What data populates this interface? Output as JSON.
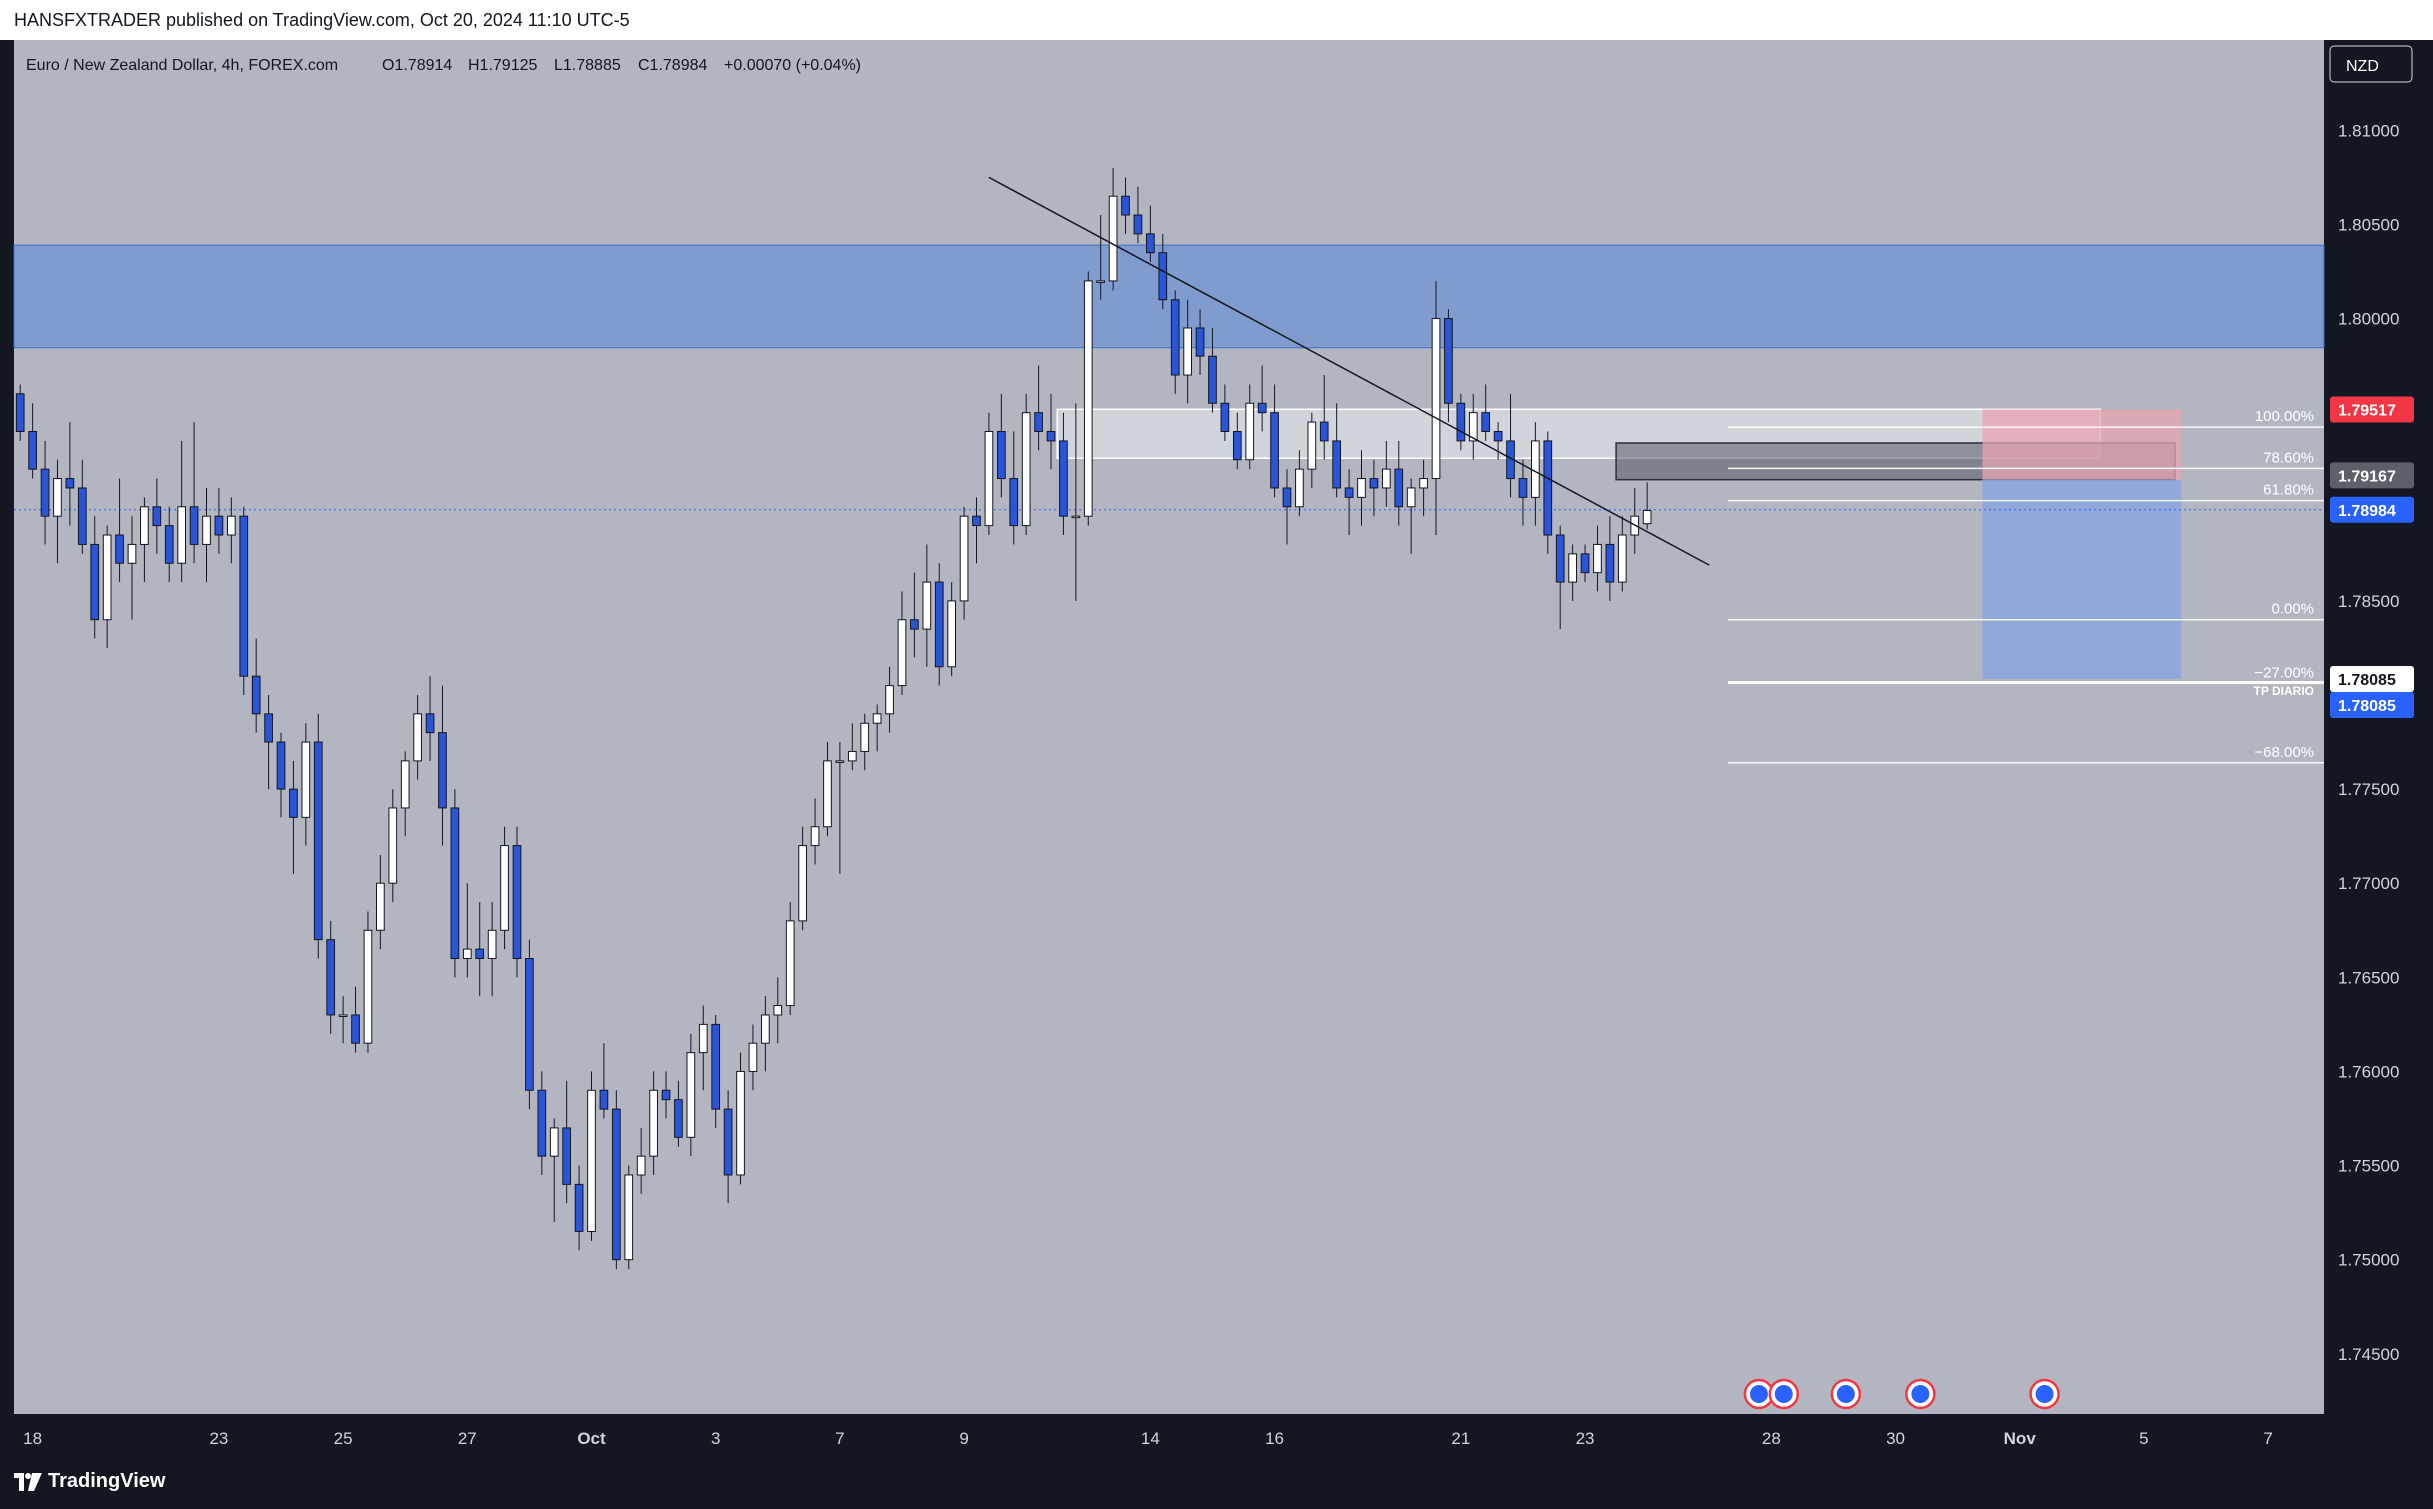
{
  "header": {
    "publisher_line": "HANSFXTRADER published on TradingView.com, Oct 20, 2024 11:10 UTC-5"
  },
  "footer": {
    "brand": "TradingView",
    "logo_icon": "tradingview-logo-icon"
  },
  "colors": {
    "background": "#b3b6c0",
    "frame": "#131722",
    "up_candle": "#ffffff",
    "down_candle": "#2a55d9",
    "zone_blue": "#6f93d3",
    "last_price": "#2962ff",
    "top_price": "#f23645",
    "fib_price": "#5d606b"
  },
  "chart_data": {
    "type": "candlestick",
    "symbol_line": "Euro / New Zealand Dollar, 4h, FOREX.com",
    "ohlc_header": {
      "open": "O1.78914",
      "high": "H1.79125",
      "low": "L1.78885",
      "close": "C1.78984",
      "change": "+0.00070 (+0.04%)"
    },
    "currency": "NZD",
    "y_ticks": [
      "1.81000",
      "1.80500",
      "1.80000",
      "1.79500",
      "1.79000",
      "1.78500",
      "1.78000",
      "1.77500",
      "1.77000",
      "1.76500",
      "1.76000",
      "1.75500",
      "1.75000",
      "1.74500"
    ],
    "y_tick_values": [
      1.81,
      1.805,
      1.8,
      1.795,
      1.79,
      1.785,
      1.78,
      1.775,
      1.77,
      1.765,
      1.76,
      1.755,
      1.75,
      1.745
    ],
    "ylim": [
      1.7418,
      1.8148
    ],
    "x_ticks": [
      "18",
      "23",
      "25",
      "27",
      "Oct",
      "3",
      "7",
      "9",
      "14",
      "16",
      "21",
      "23",
      "28",
      "30",
      "Nov",
      "5",
      "7"
    ],
    "x_tick_bar_index": [
      1,
      16,
      26,
      36,
      46,
      56,
      66,
      76,
      91,
      101,
      116,
      126,
      141,
      151,
      161,
      171,
      181
    ],
    "total_bars": 186,
    "candles": [
      [
        1.796,
        1.7965,
        1.7935,
        1.794
      ],
      [
        1.794,
        1.7955,
        1.7915,
        1.792
      ],
      [
        1.792,
        1.7935,
        1.788,
        1.7895
      ],
      [
        1.7895,
        1.7925,
        1.787,
        1.7915
      ],
      [
        1.7915,
        1.7945,
        1.789,
        1.791
      ],
      [
        1.791,
        1.7925,
        1.7875,
        1.788
      ],
      [
        1.788,
        1.7895,
        1.783,
        1.784
      ],
      [
        1.784,
        1.789,
        1.7825,
        1.7885
      ],
      [
        1.7885,
        1.7915,
        1.786,
        1.787
      ],
      [
        1.787,
        1.7895,
        1.784,
        1.788
      ],
      [
        1.788,
        1.7905,
        1.786,
        1.79
      ],
      [
        1.79,
        1.7915,
        1.7875,
        1.789
      ],
      [
        1.789,
        1.79,
        1.786,
        1.787
      ],
      [
        1.787,
        1.7935,
        1.786,
        1.79
      ],
      [
        1.79,
        1.7945,
        1.787,
        1.788
      ],
      [
        1.788,
        1.791,
        1.786,
        1.7895
      ],
      [
        1.7895,
        1.791,
        1.7875,
        1.7885
      ],
      [
        1.7885,
        1.7905,
        1.787,
        1.7895
      ],
      [
        1.7895,
        1.79,
        1.78,
        1.781
      ],
      [
        1.781,
        1.783,
        1.778,
        1.779
      ],
      [
        1.779,
        1.78,
        1.775,
        1.7775
      ],
      [
        1.7775,
        1.778,
        1.7735,
        1.775
      ],
      [
        1.775,
        1.7765,
        1.7705,
        1.7735
      ],
      [
        1.7735,
        1.7785,
        1.772,
        1.7775
      ],
      [
        1.7775,
        1.779,
        1.766,
        1.767
      ],
      [
        1.767,
        1.768,
        1.762,
        1.763
      ],
      [
        1.763,
        1.764,
        1.7615,
        1.763
      ],
      [
        1.763,
        1.7645,
        1.761,
        1.7615
      ],
      [
        1.7615,
        1.7685,
        1.761,
        1.7675
      ],
      [
        1.7675,
        1.7715,
        1.7665,
        1.77
      ],
      [
        1.77,
        1.775,
        1.769,
        1.774
      ],
      [
        1.774,
        1.777,
        1.7725,
        1.7765
      ],
      [
        1.7765,
        1.78,
        1.7755,
        1.779
      ],
      [
        1.779,
        1.781,
        1.7765,
        1.778
      ],
      [
        1.778,
        1.7805,
        1.772,
        1.774
      ],
      [
        1.774,
        1.775,
        1.765,
        1.766
      ],
      [
        1.766,
        1.77,
        1.765,
        1.7665
      ],
      [
        1.7665,
        1.769,
        1.764,
        1.766
      ],
      [
        1.766,
        1.769,
        1.764,
        1.7675
      ],
      [
        1.7675,
        1.773,
        1.7665,
        1.772
      ],
      [
        1.772,
        1.773,
        1.765,
        1.766
      ],
      [
        1.766,
        1.767,
        1.758,
        1.759
      ],
      [
        1.759,
        1.76,
        1.7545,
        1.7555
      ],
      [
        1.7555,
        1.7575,
        1.752,
        1.757
      ],
      [
        1.757,
        1.7595,
        1.753,
        1.754
      ],
      [
        1.754,
        1.755,
        1.7505,
        1.7515
      ],
      [
        1.7515,
        1.76,
        1.751,
        1.759
      ],
      [
        1.759,
        1.7615,
        1.7575,
        1.758
      ],
      [
        1.758,
        1.759,
        1.7495,
        1.75
      ],
      [
        1.75,
        1.755,
        1.7495,
        1.7545
      ],
      [
        1.7545,
        1.757,
        1.7535,
        1.7555
      ],
      [
        1.7555,
        1.76,
        1.7545,
        1.759
      ],
      [
        1.759,
        1.76,
        1.7575,
        1.7585
      ],
      [
        1.7585,
        1.7595,
        1.756,
        1.7565
      ],
      [
        1.7565,
        1.762,
        1.7555,
        1.761
      ],
      [
        1.761,
        1.7635,
        1.759,
        1.7625
      ],
      [
        1.7625,
        1.763,
        1.757,
        1.758
      ],
      [
        1.758,
        1.759,
        1.753,
        1.7545
      ],
      [
        1.7545,
        1.761,
        1.754,
        1.76
      ],
      [
        1.76,
        1.7625,
        1.759,
        1.7615
      ],
      [
        1.7615,
        1.764,
        1.76,
        1.763
      ],
      [
        1.763,
        1.765,
        1.7615,
        1.7635
      ],
      [
        1.7635,
        1.769,
        1.763,
        1.768
      ],
      [
        1.768,
        1.773,
        1.7675,
        1.772
      ],
      [
        1.772,
        1.7745,
        1.771,
        1.773
      ],
      [
        1.773,
        1.7775,
        1.7725,
        1.7765
      ],
      [
        1.7765,
        1.7775,
        1.7705,
        1.7765
      ],
      [
        1.7765,
        1.7785,
        1.776,
        1.777
      ],
      [
        1.777,
        1.779,
        1.776,
        1.7785
      ],
      [
        1.7785,
        1.7795,
        1.777,
        1.779
      ],
      [
        1.779,
        1.7815,
        1.778,
        1.7805
      ],
      [
        1.7805,
        1.7855,
        1.78,
        1.784
      ],
      [
        1.784,
        1.7865,
        1.782,
        1.7835
      ],
      [
        1.7835,
        1.788,
        1.7815,
        1.786
      ],
      [
        1.786,
        1.787,
        1.7805,
        1.7815
      ],
      [
        1.7815,
        1.786,
        1.781,
        1.785
      ],
      [
        1.785,
        1.79,
        1.784,
        1.7895
      ],
      [
        1.7895,
        1.7905,
        1.787,
        1.789
      ],
      [
        1.789,
        1.795,
        1.7885,
        1.794
      ],
      [
        1.794,
        1.796,
        1.7905,
        1.7915
      ],
      [
        1.7915,
        1.794,
        1.788,
        1.789
      ],
      [
        1.789,
        1.796,
        1.7885,
        1.795
      ],
      [
        1.795,
        1.7975,
        1.793,
        1.794
      ],
      [
        1.794,
        1.796,
        1.792,
        1.7935
      ],
      [
        1.7935,
        1.795,
        1.7885,
        1.7895
      ],
      [
        1.7895,
        1.7955,
        1.785,
        1.7895
      ],
      [
        1.7895,
        1.8025,
        1.789,
        1.802
      ],
      [
        1.802,
        1.8055,
        1.801,
        1.802
      ],
      [
        1.802,
        1.808,
        1.8015,
        1.8065
      ],
      [
        1.8065,
        1.8075,
        1.8045,
        1.8055
      ],
      [
        1.8055,
        1.807,
        1.804,
        1.8045
      ],
      [
        1.8045,
        1.806,
        1.803,
        1.8035
      ],
      [
        1.8035,
        1.8045,
        1.8005,
        1.801
      ],
      [
        1.801,
        1.8015,
        1.796,
        1.797
      ],
      [
        1.797,
        1.801,
        1.7955,
        1.7995
      ],
      [
        1.7995,
        1.8005,
        1.797,
        1.798
      ],
      [
        1.798,
        1.7995,
        1.795,
        1.7955
      ],
      [
        1.7955,
        1.7965,
        1.7935,
        1.794
      ],
      [
        1.794,
        1.795,
        1.792,
        1.7925
      ],
      [
        1.7925,
        1.7965,
        1.792,
        1.7955
      ],
      [
        1.7955,
        1.7975,
        1.794,
        1.795
      ],
      [
        1.795,
        1.7965,
        1.7905,
        1.791
      ],
      [
        1.791,
        1.792,
        1.788,
        1.79
      ],
      [
        1.79,
        1.793,
        1.7895,
        1.792
      ],
      [
        1.792,
        1.795,
        1.791,
        1.7945
      ],
      [
        1.7945,
        1.797,
        1.7925,
        1.7935
      ],
      [
        1.7935,
        1.7955,
        1.7905,
        1.791
      ],
      [
        1.791,
        1.792,
        1.7885,
        1.7905
      ],
      [
        1.7905,
        1.793,
        1.789,
        1.7915
      ],
      [
        1.7915,
        1.7925,
        1.7895,
        1.791
      ],
      [
        1.791,
        1.7935,
        1.79,
        1.792
      ],
      [
        1.792,
        1.7935,
        1.789,
        1.79
      ],
      [
        1.79,
        1.7915,
        1.7875,
        1.791
      ],
      [
        1.791,
        1.7925,
        1.7895,
        1.7915
      ],
      [
        1.7915,
        1.802,
        1.7885,
        1.8
      ],
      [
        1.8,
        1.8005,
        1.7945,
        1.7955
      ],
      [
        1.7955,
        1.796,
        1.793,
        1.7935
      ],
      [
        1.7935,
        1.796,
        1.7925,
        1.795
      ],
      [
        1.795,
        1.7965,
        1.7935,
        1.794
      ],
      [
        1.794,
        1.7945,
        1.7925,
        1.7935
      ],
      [
        1.7935,
        1.796,
        1.7905,
        1.7915
      ],
      [
        1.7915,
        1.7925,
        1.789,
        1.7905
      ],
      [
        1.7905,
        1.7945,
        1.789,
        1.7935
      ],
      [
        1.7935,
        1.794,
        1.7875,
        1.7885
      ],
      [
        1.7885,
        1.789,
        1.7835,
        1.786
      ],
      [
        1.786,
        1.788,
        1.785,
        1.7875
      ],
      [
        1.7875,
        1.788,
        1.786,
        1.7865
      ],
      [
        1.7865,
        1.789,
        1.7855,
        1.788
      ],
      [
        1.788,
        1.7895,
        1.785,
        1.786
      ],
      [
        1.786,
        1.7895,
        1.7855,
        1.7885
      ],
      [
        1.7885,
        1.791,
        1.7875,
        1.7895
      ],
      [
        1.7891,
        1.7913,
        1.7888,
        1.7898
      ]
    ]
  },
  "overlays": {
    "fib_labels": [
      "100.00%",
      "78.60%",
      "61.80%",
      "0.00%",
      "−27.00%",
      "−68.00%"
    ],
    "fib_levels": [
      1.79423,
      1.79204,
      1.79033,
      1.784,
      1.78062,
      1.7764
    ],
    "tp_label": "TP DIARIO",
    "price_tags": {
      "stop_price": "1.79517",
      "fib_price": "1.79167",
      "last_price": "1.78984",
      "tp_price_1": "1.78085",
      "tp_price_2": "1.78085"
    },
    "event_icons": [
      "economic-event-icon",
      "economic-event-icon",
      "economic-event-icon",
      "economic-event-icon",
      "economic-event-icon"
    ],
    "event_bar_index": [
      140,
      142,
      147,
      153,
      163
    ]
  }
}
